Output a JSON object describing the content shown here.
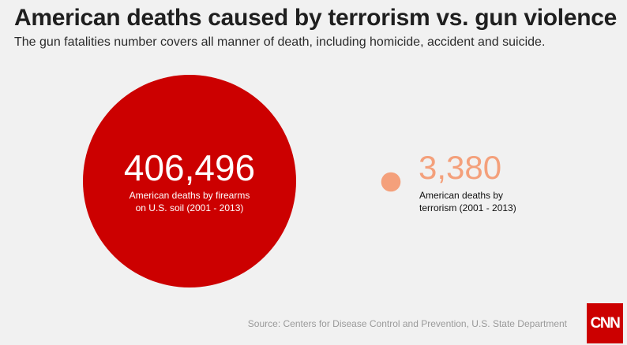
{
  "header": {
    "title": "American deaths caused by terrorism vs. gun violence",
    "subtitle": "The gun fatalities number covers all manner of death, including homicide, accident and suicide."
  },
  "chart_data": {
    "type": "bubble",
    "title": "American deaths caused by terrorism vs. gun violence",
    "subtitle": "The gun fatalities number covers all manner of death, including homicide, accident and suicide.",
    "series": [
      {
        "key": "firearms",
        "value": 406496,
        "value_label": "406,496",
        "label_line1": "American deaths by firearms",
        "label_line2": "on U.S. soil (2001 - 2013)",
        "color": "#cc0000"
      },
      {
        "key": "terrorism",
        "value": 3380,
        "value_label": "3,380",
        "label_line1": "American deaths by",
        "label_line2": "terrorism (2001 - 2013)",
        "color": "#f4a07b"
      }
    ],
    "area_proportional": true
  },
  "footer": {
    "source": "Source: Centers for Disease Control and Prevention, U.S. State Department",
    "logo": "CNN"
  },
  "colors": {
    "background": "#f1f1f1",
    "brand": "#cc0000",
    "accent": "#f4a07b"
  }
}
